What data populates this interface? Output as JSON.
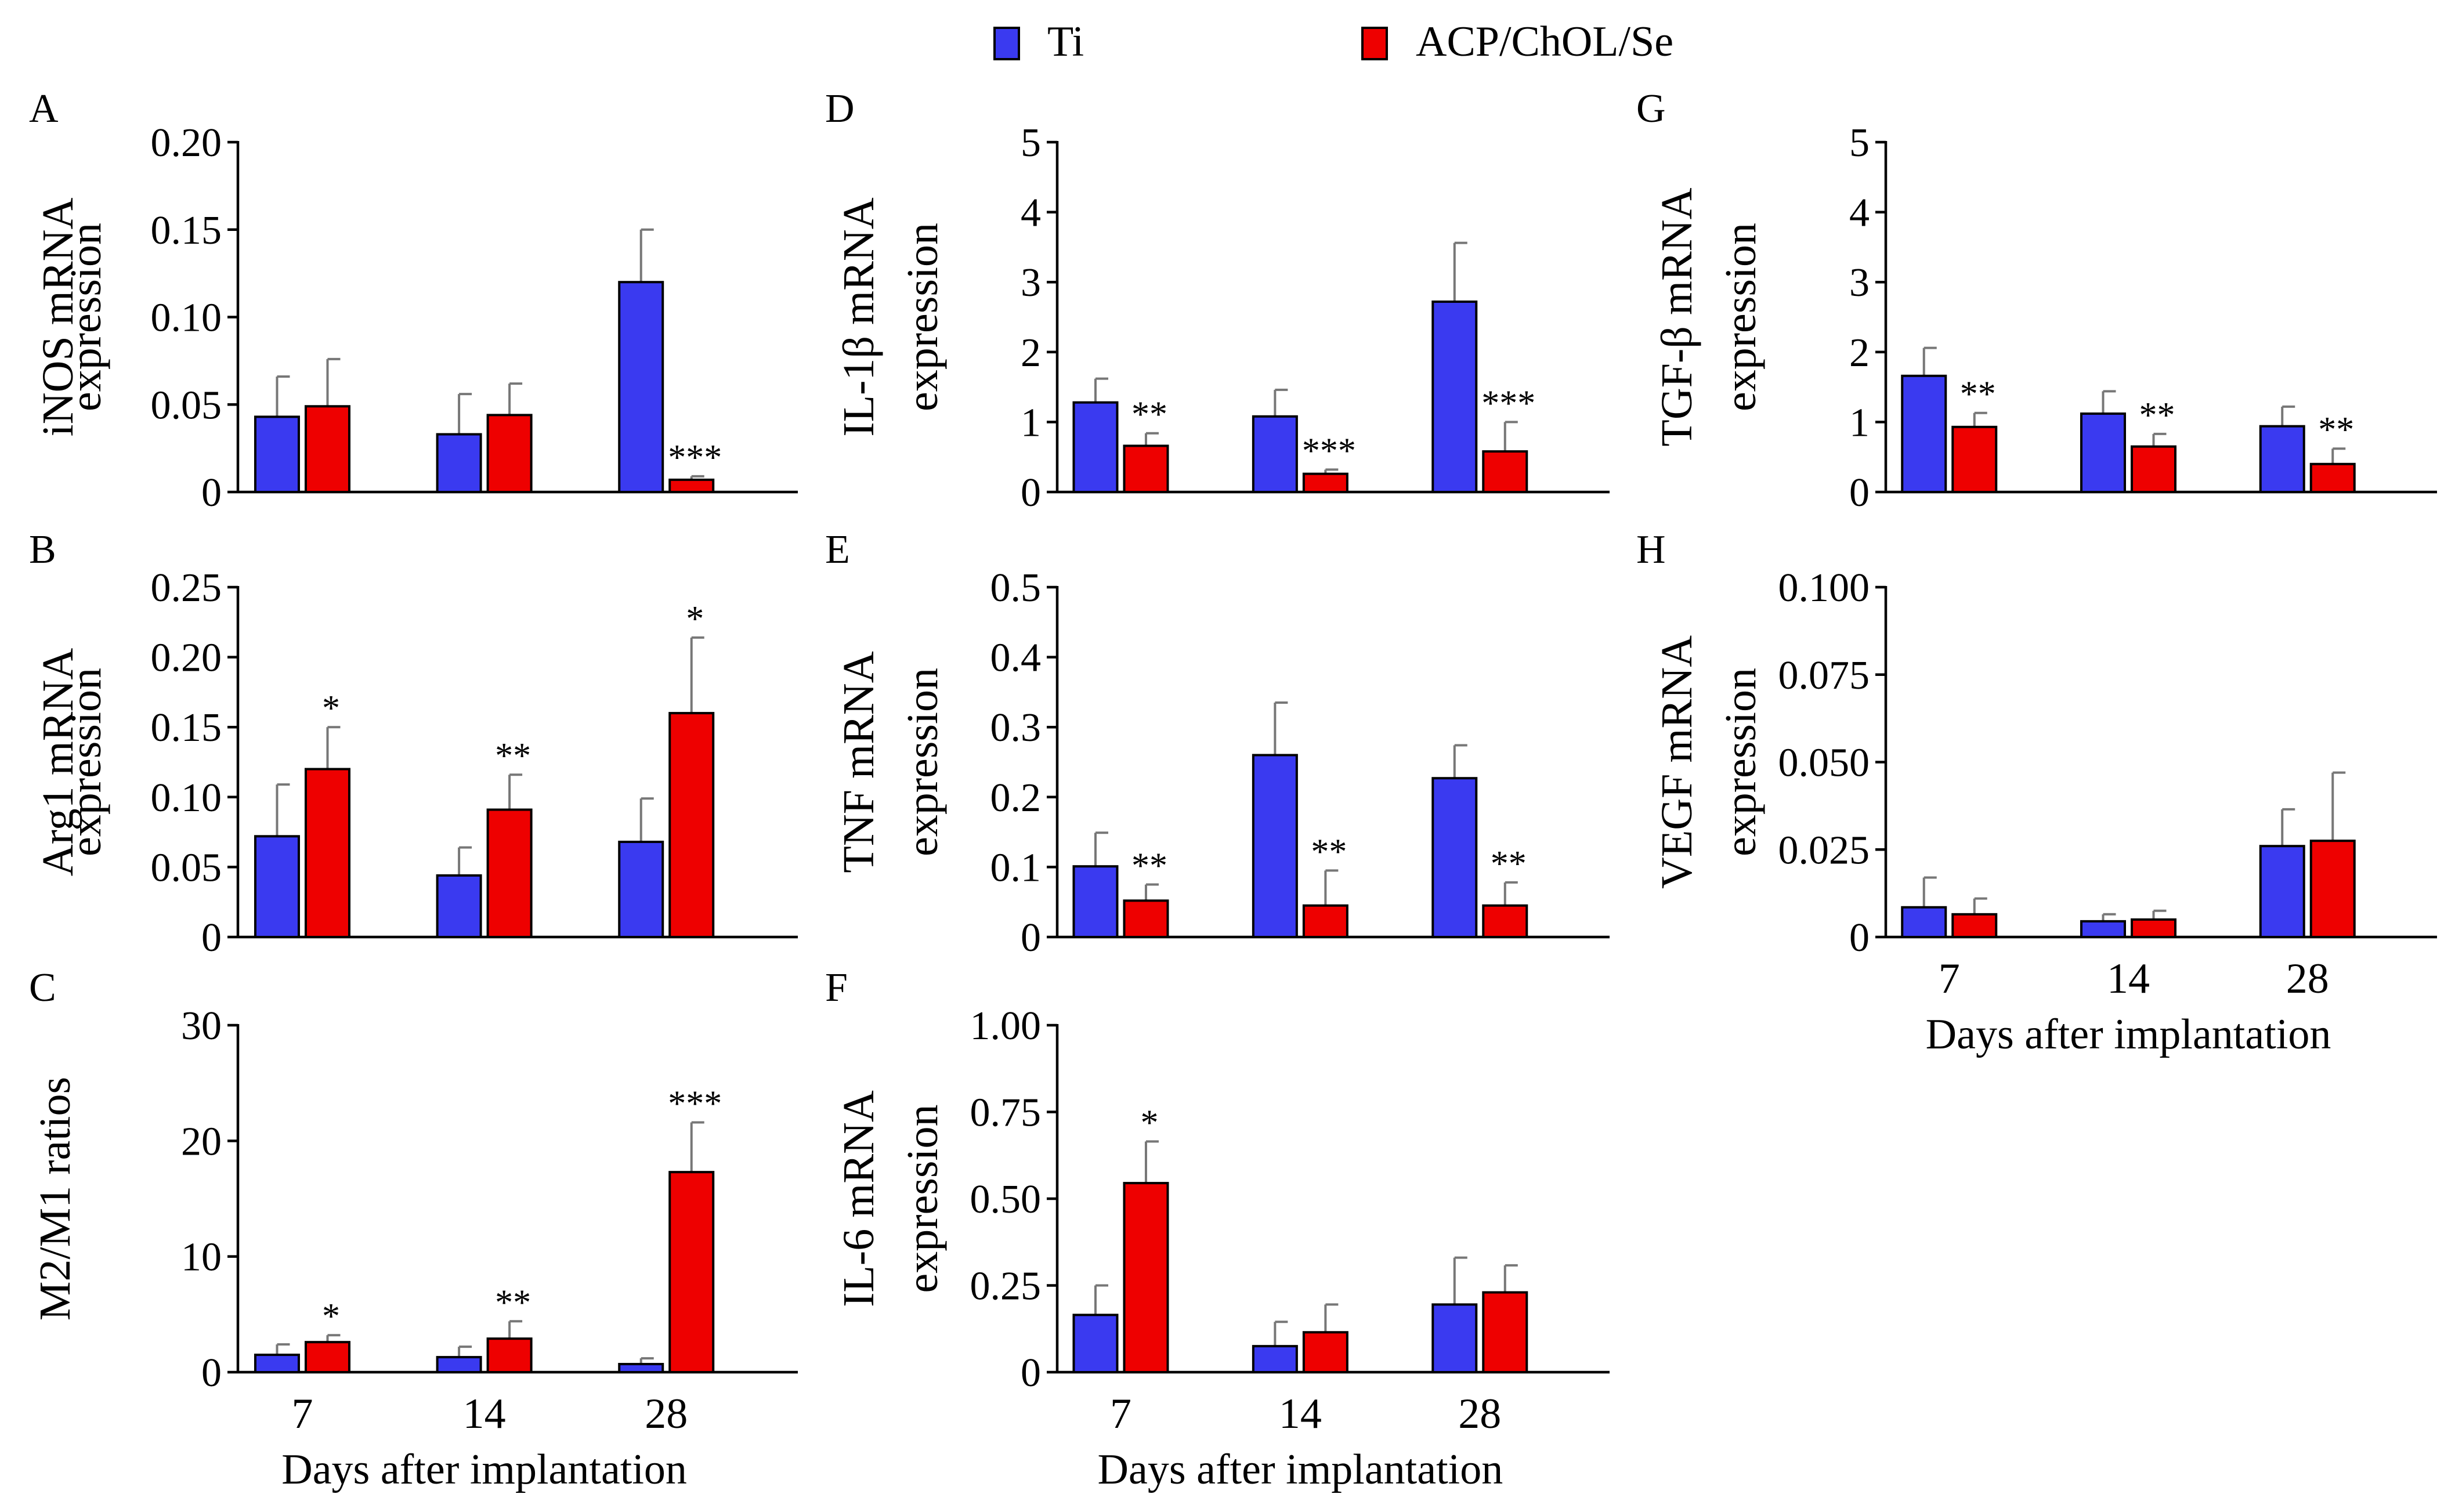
{
  "legend": {
    "ti": {
      "label": "Ti",
      "color": "#3a3af0"
    },
    "acp": {
      "label": "ACP/ChOL/Se",
      "color": "#ee0000"
    }
  },
  "colors": {
    "ti": "#3a3af0",
    "acp": "#ee0000",
    "axis": "#000000",
    "error_bar": "#777777"
  },
  "chart_data": [
    {
      "panel": "A",
      "type": "bar",
      "ylabel_lines": [
        "iNOS mRNA",
        "expression"
      ],
      "categories": [
        "7",
        "14",
        "28"
      ],
      "ylim": [
        0,
        0.2
      ],
      "yticks": [
        0,
        0.05,
        0.1,
        0.15,
        0.2
      ],
      "ytick_labels": [
        "0",
        "0.05",
        "0.10",
        "0.15",
        "0.20"
      ],
      "series": [
        {
          "name": "Ti",
          "values": [
            0.043,
            0.033,
            0.12
          ],
          "errors": [
            0.023,
            0.023,
            0.03
          ]
        },
        {
          "name": "ACP/ChOL/Se",
          "values": [
            0.049,
            0.044,
            0.007
          ],
          "errors": [
            0.027,
            0.018,
            0.002
          ],
          "significance": [
            "",
            "",
            "***"
          ]
        }
      ]
    },
    {
      "panel": "B",
      "type": "bar",
      "ylabel_lines": [
        "Arg1 mRNA",
        "expression"
      ],
      "categories": [
        "7",
        "14",
        "28"
      ],
      "ylim": [
        0,
        0.25
      ],
      "yticks": [
        0,
        0.05,
        0.1,
        0.15,
        0.2,
        0.25
      ],
      "ytick_labels": [
        "0",
        "0.05",
        "0.10",
        "0.15",
        "0.20",
        "0.25"
      ],
      "series": [
        {
          "name": "Ti",
          "values": [
            0.072,
            0.044,
            0.068
          ],
          "errors": [
            0.037,
            0.02,
            0.031
          ]
        },
        {
          "name": "ACP/ChOL/Se",
          "values": [
            0.12,
            0.091,
            0.16
          ],
          "errors": [
            0.03,
            0.025,
            0.054
          ],
          "significance": [
            "*",
            "**",
            "*"
          ]
        }
      ]
    },
    {
      "panel": "C",
      "type": "bar",
      "ylabel_lines": [
        "M2/M1 ratios"
      ],
      "categories": [
        "7",
        "14",
        "28"
      ],
      "ylim": [
        0,
        30
      ],
      "yticks": [
        0,
        10,
        20,
        30
      ],
      "ytick_labels": [
        "0",
        "10",
        "20",
        "30"
      ],
      "xlabel": "Days after implantation",
      "series": [
        {
          "name": "Ti",
          "values": [
            1.5,
            1.3,
            0.7
          ],
          "errors": [
            0.9,
            0.9,
            0.5
          ]
        },
        {
          "name": "ACP/ChOL/Se",
          "values": [
            2.6,
            2.9,
            17.3
          ],
          "errors": [
            0.6,
            1.5,
            4.3
          ],
          "significance": [
            "*",
            "**",
            "***"
          ]
        }
      ]
    },
    {
      "panel": "D",
      "type": "bar",
      "ylabel_lines": [
        "IL-1β mRNA",
        "expression"
      ],
      "categories": [
        "7",
        "14",
        "28"
      ],
      "ylim": [
        0,
        5
      ],
      "yticks": [
        0,
        1,
        2,
        3,
        4,
        5
      ],
      "ytick_labels": [
        "0",
        "1",
        "2",
        "3",
        "4",
        "5"
      ],
      "series": [
        {
          "name": "Ti",
          "values": [
            1.28,
            1.08,
            2.72
          ],
          "errors": [
            0.34,
            0.38,
            0.84
          ]
        },
        {
          "name": "ACP/ChOL/Se",
          "values": [
            0.66,
            0.26,
            0.58
          ],
          "errors": [
            0.18,
            0.06,
            0.42
          ],
          "significance": [
            "**",
            "***",
            "***"
          ]
        }
      ]
    },
    {
      "panel": "E",
      "type": "bar",
      "ylabel_lines": [
        "TNF mRNA",
        "expression"
      ],
      "categories": [
        "7",
        "14",
        "28"
      ],
      "ylim": [
        0,
        0.5
      ],
      "yticks": [
        0,
        0.1,
        0.2,
        0.3,
        0.4,
        0.5
      ],
      "ytick_labels": [
        "0",
        "0.1",
        "0.2",
        "0.3",
        "0.4",
        "0.5"
      ],
      "series": [
        {
          "name": "Ti",
          "values": [
            0.101,
            0.26,
            0.227
          ],
          "errors": [
            0.048,
            0.075,
            0.047
          ]
        },
        {
          "name": "ACP/ChOL/Se",
          "values": [
            0.052,
            0.045,
            0.045
          ],
          "errors": [
            0.023,
            0.05,
            0.033
          ],
          "significance": [
            "**",
            "**",
            "**"
          ]
        }
      ]
    },
    {
      "panel": "F",
      "type": "bar",
      "ylabel_lines": [
        "IL-6 mRNA",
        "expression"
      ],
      "categories": [
        "7",
        "14",
        "28"
      ],
      "ylim": [
        0,
        1
      ],
      "yticks": [
        0,
        0.25,
        0.5,
        0.75,
        1
      ],
      "ytick_labels": [
        "0",
        "0.25",
        "0.50",
        "0.75",
        "1.00"
      ],
      "xlabel": "Days after implantation",
      "series": [
        {
          "name": "Ti",
          "values": [
            0.165,
            0.075,
            0.195
          ],
          "errors": [
            0.085,
            0.07,
            0.135
          ]
        },
        {
          "name": "ACP/ChOL/Se",
          "values": [
            0.545,
            0.115,
            0.23
          ],
          "errors": [
            0.12,
            0.08,
            0.078
          ],
          "significance": [
            "*",
            "",
            ""
          ]
        }
      ]
    },
    {
      "panel": "G",
      "type": "bar",
      "ylabel_lines": [
        "TGF-β mRNA",
        "expression"
      ],
      "categories": [
        "7",
        "14",
        "28"
      ],
      "ylim": [
        0,
        5
      ],
      "yticks": [
        0,
        1,
        2,
        3,
        4,
        5
      ],
      "ytick_labels": [
        "0",
        "1",
        "2",
        "3",
        "4",
        "5"
      ],
      "series": [
        {
          "name": "Ti",
          "values": [
            1.66,
            1.12,
            0.94
          ],
          "errors": [
            0.4,
            0.32,
            0.28
          ]
        },
        {
          "name": "ACP/ChOL/Se",
          "values": [
            0.93,
            0.65,
            0.4
          ],
          "errors": [
            0.2,
            0.18,
            0.22
          ],
          "significance": [
            "**",
            "**",
            "**"
          ]
        }
      ]
    },
    {
      "panel": "H",
      "type": "bar",
      "ylabel_lines": [
        "VEGF mRNA",
        "expression"
      ],
      "categories": [
        "7",
        "14",
        "28"
      ],
      "ylim": [
        0,
        0.1
      ],
      "yticks": [
        0,
        0.025,
        0.05,
        0.075,
        0.1
      ],
      "ytick_labels": [
        "0",
        "0.025",
        "0.050",
        "0.075",
        "0.100"
      ],
      "xlabel": "Days after implantation",
      "series": [
        {
          "name": "Ti",
          "values": [
            0.0085,
            0.0045,
            0.026
          ],
          "errors": [
            0.0085,
            0.002,
            0.0105
          ]
        },
        {
          "name": "ACP/ChOL/Se",
          "values": [
            0.0065,
            0.005,
            0.0275
          ],
          "errors": [
            0.0045,
            0.0025,
            0.0195
          ],
          "significance": [
            "",
            "",
            ""
          ]
        }
      ]
    }
  ]
}
